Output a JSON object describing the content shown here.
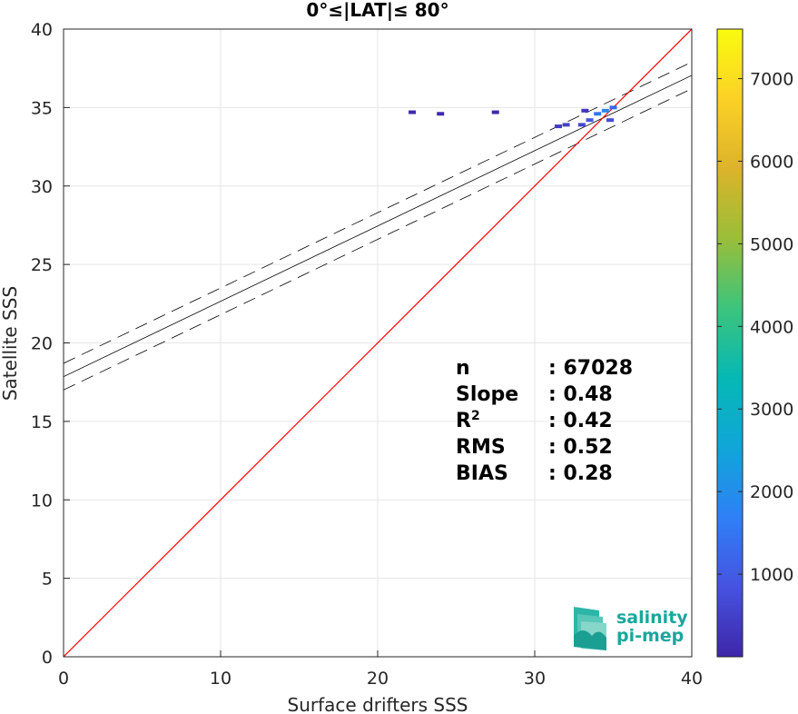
{
  "chart_data": {
    "type": "scatter",
    "title": "0°≤|LAT|≤ 80°",
    "xlabel": "Surface drifters SSS",
    "ylabel": "Satellite SSS",
    "xlim": [
      0,
      40
    ],
    "ylim": [
      0,
      40
    ],
    "xticks": [
      0,
      10,
      20,
      30,
      40
    ],
    "yticks": [
      0,
      5,
      10,
      15,
      20,
      25,
      30,
      35,
      40
    ],
    "grid": true,
    "fit": {
      "slope": 0.48,
      "intercept": 17.85,
      "band": 0.85
    },
    "identity_line": {
      "color": "#ff0000"
    },
    "stats": [
      {
        "key": "n",
        "sep": ": ",
        "value": "67028"
      },
      {
        "key": "Slope",
        "sep": ": ",
        "value": "0.48"
      },
      {
        "key": "R",
        "sup": "2",
        "sep": ": ",
        "value": "0.42"
      },
      {
        "key": "RMS",
        "sep": ": ",
        "value": "0.52"
      },
      {
        "key": "BIAS",
        "sep": ": ",
        "value": "0.28"
      }
    ],
    "colorbar": {
      "ticks": [
        1000,
        2000,
        3000,
        4000,
        5000,
        6000,
        7000
      ],
      "range": [
        0,
        7600
      ],
      "colormap": [
        "#3e26a8",
        "#4653e0",
        "#2f80f6",
        "#10a6d8",
        "#06b8b4",
        "#3cc47c",
        "#9abe39",
        "#dcb32b",
        "#fbd126",
        "#f9fb0e"
      ]
    },
    "density_points": [
      {
        "x": 33.0,
        "y": 33.9,
        "count": 600
      },
      {
        "x": 32.0,
        "y": 33.9,
        "count": 500
      },
      {
        "x": 31.5,
        "y": 33.8,
        "count": 400
      },
      {
        "x": 34.0,
        "y": 34.6,
        "count": 1500
      },
      {
        "x": 34.5,
        "y": 34.8,
        "count": 1800
      },
      {
        "x": 35.0,
        "y": 35.0,
        "count": 1200
      },
      {
        "x": 33.5,
        "y": 34.2,
        "count": 900
      },
      {
        "x": 34.8,
        "y": 34.2,
        "count": 700
      },
      {
        "x": 33.2,
        "y": 34.8,
        "count": 300
      },
      {
        "x": 22.2,
        "y": 34.7,
        "count": 50
      },
      {
        "x": 24.0,
        "y": 34.6,
        "count": 50
      },
      {
        "x": 27.5,
        "y": 34.7,
        "count": 50
      }
    ]
  },
  "logo": {
    "line1": "salinity",
    "line2": "pi-mep"
  }
}
